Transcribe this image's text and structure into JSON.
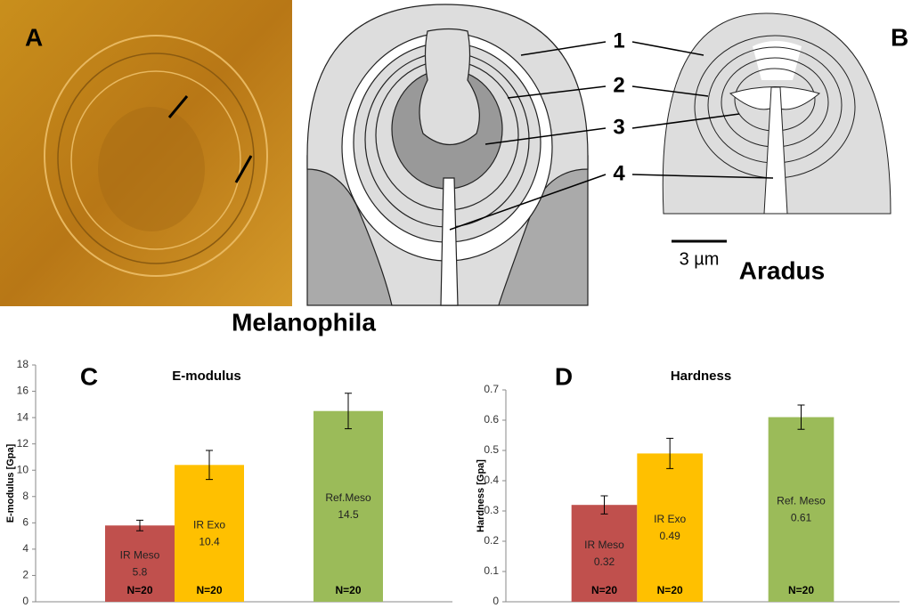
{
  "figure": {
    "panel_a_label": "A",
    "panel_b_label": "B",
    "callouts": [
      "1",
      "2",
      "3",
      "4"
    ],
    "scale_bar": "3 µm",
    "caption_left": "Melanophila",
    "caption_right": "Aradus"
  },
  "chart_data": [
    {
      "type": "bar",
      "panel_label": "C",
      "title": "E-modulus",
      "y_label": "E-modulus [Gpa]",
      "categories": [
        null,
        "IR Meso",
        "IR Exo",
        null,
        "Ref.Meso",
        null
      ],
      "values": [
        null,
        5.8,
        10.4,
        null,
        14.5,
        null
      ],
      "errors": [
        null,
        0.4,
        1.1,
        null,
        1.35,
        null
      ],
      "n_labels": [
        null,
        "N=20",
        "N=20",
        null,
        "N=20",
        null
      ],
      "colors": [
        null,
        "#c0504d",
        "#ffc000",
        null,
        "#9bbb59",
        null
      ],
      "ylim": [
        0,
        18
      ],
      "yticks": [
        0,
        2,
        4,
        6,
        8,
        10,
        12,
        14,
        16,
        18
      ],
      "grid": false
    },
    {
      "type": "bar",
      "panel_label": "D",
      "title": "Hardness",
      "y_label": "Hardness [Gpa]",
      "categories": [
        null,
        "IR Meso",
        "IR Exo",
        null,
        "Ref. Meso",
        null
      ],
      "values": [
        null,
        0.32,
        0.49,
        null,
        0.61,
        null
      ],
      "errors": [
        null,
        0.03,
        0.05,
        null,
        0.04,
        null
      ],
      "n_labels": [
        null,
        "N=20",
        "N=20",
        null,
        "N=20",
        null
      ],
      "colors": [
        null,
        "#c0504d",
        "#ffc000",
        null,
        "#9bbb59",
        null
      ],
      "ylim": [
        0,
        0.7
      ],
      "yticks": [
        0,
        0.1,
        0.2,
        0.3,
        0.4,
        0.5,
        0.6,
        0.7
      ],
      "grid": false
    }
  ]
}
